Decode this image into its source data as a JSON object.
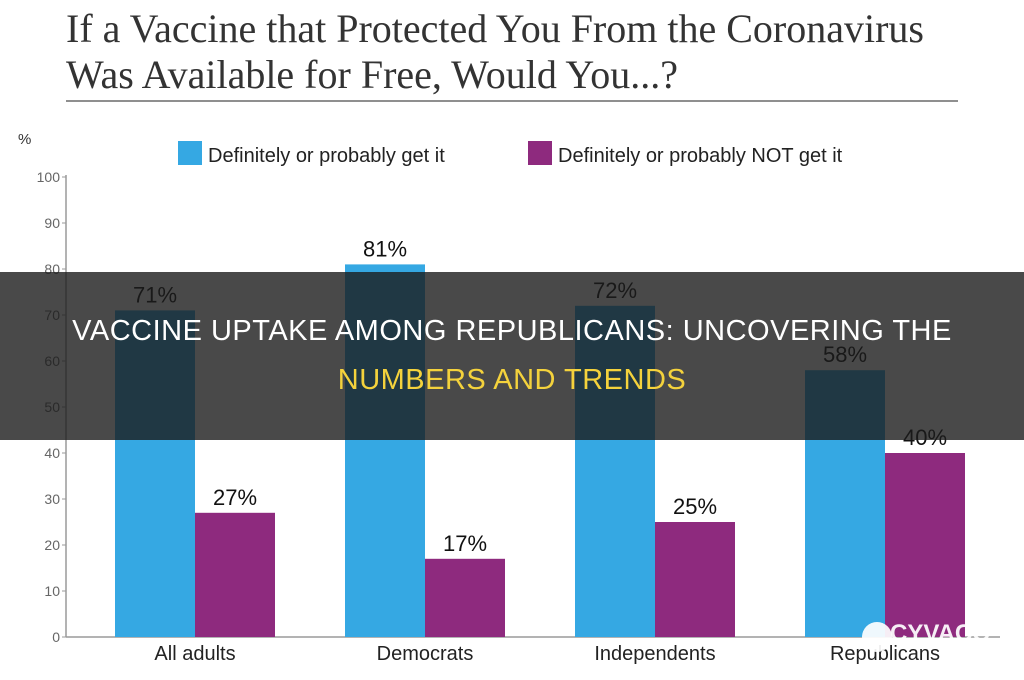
{
  "chart_data": {
    "type": "bar",
    "title": "If a Vaccine that Protected You From the Coronavirus Was Available for Free, Would You...?",
    "ylabel": "%",
    "ylim": [
      0,
      100
    ],
    "yticks": [
      0,
      10,
      20,
      30,
      40,
      50,
      60,
      70,
      80,
      90,
      100
    ],
    "categories": [
      "All adults",
      "Democrats",
      "Independents",
      "Republicans"
    ],
    "series": [
      {
        "name": "Definitely or probably get it",
        "color": "#35a8e3",
        "values": [
          71,
          81,
          72,
          58
        ],
        "labels": [
          "71%",
          "81%",
          "72%",
          "58%"
        ]
      },
      {
        "name": "Definitely or probably NOT get it",
        "color": "#8e2a7e",
        "values": [
          27,
          17,
          25,
          40
        ],
        "labels": [
          "27%",
          "17%",
          "25%",
          "40%"
        ]
      }
    ],
    "legend_position": "top",
    "grid": false
  },
  "banner": {
    "line1": "VACCINE UPTAKE AMONG REPUBLICANS: UNCOVERING THE",
    "line2": "NUMBERS AND TRENDS",
    "overlay_color": "#1c1c1c",
    "highlight_color": "#f4d23c"
  },
  "watermark": {
    "text": "CYVACC"
  }
}
